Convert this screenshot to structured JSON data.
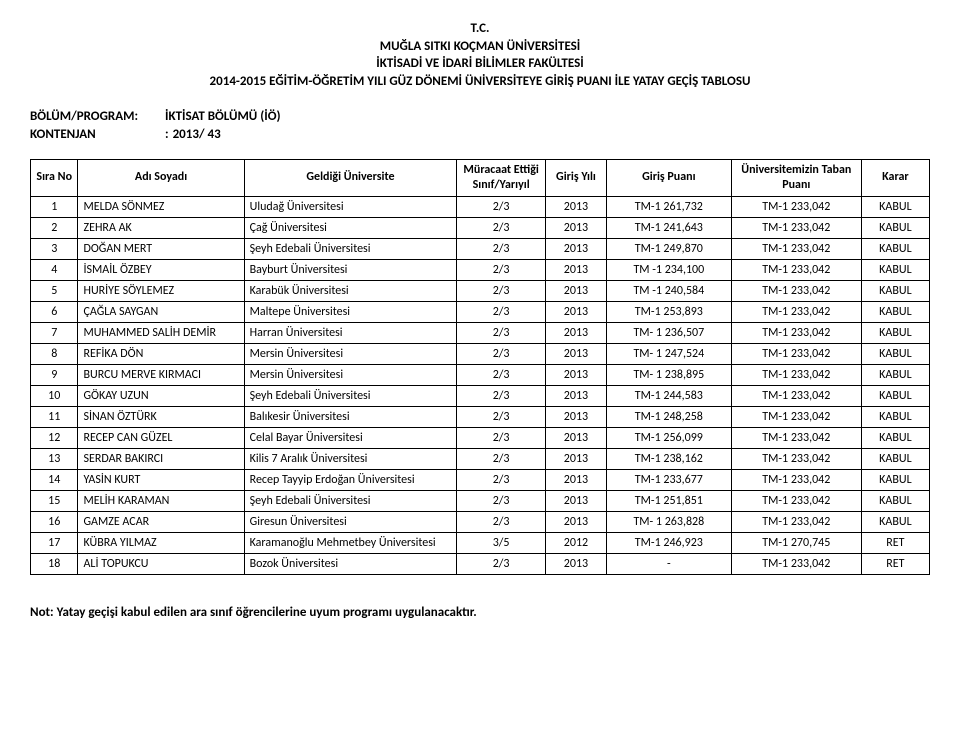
{
  "header": {
    "line1": "T.C.",
    "line2": "MUĞLA SITKI KOÇMAN ÜNİVERSİTESİ",
    "line3": "İKTİSADİ VE İDARİ BİLİMLER FAKÜLTESİ",
    "line4": "2014-2015 EĞİTİM-ÖĞRETİM YILI GÜZ DÖNEMİ ÜNİVERSİTEYE GİRİŞ PUANI İLE YATAY GEÇİŞ TABLOSU"
  },
  "meta": {
    "program_label": "BÖLÜM/PROGRAM:",
    "program_value": "İKTİSAT BÖLÜMÜ (İÖ)",
    "quota_label": "KONTENJAN",
    "quota_sep": ":",
    "quota_value": "2013/ 43"
  },
  "columns": {
    "no": "Sıra No",
    "name": "Adı Soyadı",
    "univ": "Geldiği Üniversite",
    "class": "Müracaat Ettiği Sınıf/Yarıyıl",
    "year": "Giriş Yılı",
    "score": "Giriş Puanı",
    "base": "Üniversitemizin Taban Puanı",
    "karar": "Karar"
  },
  "rows": [
    {
      "no": "1",
      "name": "MELDA SÖNMEZ",
      "univ": "Uludağ Üniversitesi",
      "class": "2/3",
      "year": "2013",
      "score": "TM-1 261,732",
      "base": "TM-1 233,042",
      "karar": "KABUL"
    },
    {
      "no": "2",
      "name": "ZEHRA AK",
      "univ": "Çağ Üniversitesi",
      "class": "2/3",
      "year": "2013",
      "score": "TM-1 241,643",
      "base": "TM-1 233,042",
      "karar": "KABUL"
    },
    {
      "no": "3",
      "name": "DOĞAN MERT",
      "univ": "Şeyh Edebali Üniversitesi",
      "class": "2/3",
      "year": "2013",
      "score": "TM-1 249,870",
      "base": "TM-1 233,042",
      "karar": "KABUL"
    },
    {
      "no": "4",
      "name": "İSMAİL ÖZBEY",
      "univ": "Bayburt Üniversitesi",
      "class": "2/3",
      "year": "2013",
      "score": "TM -1 234,100",
      "base": "TM-1 233,042",
      "karar": "KABUL"
    },
    {
      "no": "5",
      "name": "HURİYE SÖYLEMEZ",
      "univ": "Karabük Üniversitesi",
      "class": "2/3",
      "year": "2013",
      "score": "TM -1 240,584",
      "base": "TM-1 233,042",
      "karar": "KABUL"
    },
    {
      "no": "6",
      "name": "ÇAĞLA SAYGAN",
      "univ": "Maltepe Üniversitesi",
      "class": "2/3",
      "year": "2013",
      "score": "TM-1 253,893",
      "base": "TM-1 233,042",
      "karar": "KABUL"
    },
    {
      "no": "7",
      "name": "MUHAMMED SALİH DEMİR",
      "univ": "Harran Üniversitesi",
      "class": "2/3",
      "year": "2013",
      "score": "TM- 1 236,507",
      "base": "TM-1 233,042",
      "karar": "KABUL"
    },
    {
      "no": "8",
      "name": "REFİKA DÖN",
      "univ": "Mersin Üniversitesi",
      "class": "2/3",
      "year": "2013",
      "score": "TM- 1 247,524",
      "base": "TM-1 233,042",
      "karar": "KABUL"
    },
    {
      "no": "9",
      "name": "BURCU MERVE KIRMACI",
      "univ": "Mersin Üniversitesi",
      "class": "2/3",
      "year": "2013",
      "score": "TM- 1 238,895",
      "base": "TM-1 233,042",
      "karar": "KABUL"
    },
    {
      "no": "10",
      "name": "GÖKAY UZUN",
      "univ": "Şeyh Edebali Üniversitesi",
      "class": "2/3",
      "year": "2013",
      "score": "TM-1 244,583",
      "base": "TM-1 233,042",
      "karar": "KABUL"
    },
    {
      "no": "11",
      "name": "SİNAN ÖZTÜRK",
      "univ": "Balıkesir Üniversitesi",
      "class": "2/3",
      "year": "2013",
      "score": "TM-1 248,258",
      "base": "TM-1 233,042",
      "karar": "KABUL"
    },
    {
      "no": "12",
      "name": "RECEP CAN GÜZEL",
      "univ": "Celal Bayar Üniversitesi",
      "class": "2/3",
      "year": "2013",
      "score": "TM-1 256,099",
      "base": "TM-1 233,042",
      "karar": "KABUL"
    },
    {
      "no": "13",
      "name": "SERDAR BAKIRCI",
      "univ": "Kilis 7 Aralık Üniversitesi",
      "class": "2/3",
      "year": "2013",
      "score": "TM-1 238,162",
      "base": "TM-1 233,042",
      "karar": "KABUL"
    },
    {
      "no": "14",
      "name": "YASİN KURT",
      "univ": "Recep Tayyip Erdoğan Üniversitesi",
      "class": "2/3",
      "year": "2013",
      "score": "TM-1 233,677",
      "base": "TM-1 233,042",
      "karar": "KABUL"
    },
    {
      "no": "15",
      "name": "MELİH KARAMAN",
      "univ": "Şeyh Edebali Üniversitesi",
      "class": "2/3",
      "year": "2013",
      "score": "TM-1 251,851",
      "base": "TM-1 233,042",
      "karar": "KABUL"
    },
    {
      "no": "16",
      "name": "GAMZE ACAR",
      "univ": "Giresun Üniversitesi",
      "class": "2/3",
      "year": "2013",
      "score": "TM- 1 263,828",
      "base": "TM-1 233,042",
      "karar": "KABUL"
    },
    {
      "no": "17",
      "name": "KÜBRA YILMAZ",
      "univ": "Karamanoğlu Mehmetbey Üniversitesi",
      "class": "3/5",
      "year": "2012",
      "score": "TM-1 246,923",
      "base": "TM-1 270,745",
      "karar": "RET"
    },
    {
      "no": "18",
      "name": "ALİ TOPUKCU",
      "univ": "Bozok Üniversitesi",
      "class": "2/3",
      "year": "2013",
      "score": "-",
      "base": "TM-1 233,042",
      "karar": "RET"
    }
  ],
  "footnote": "Not: Yatay geçişi kabul edilen ara sınıf öğrencilerine uyum programı uygulanacaktır."
}
